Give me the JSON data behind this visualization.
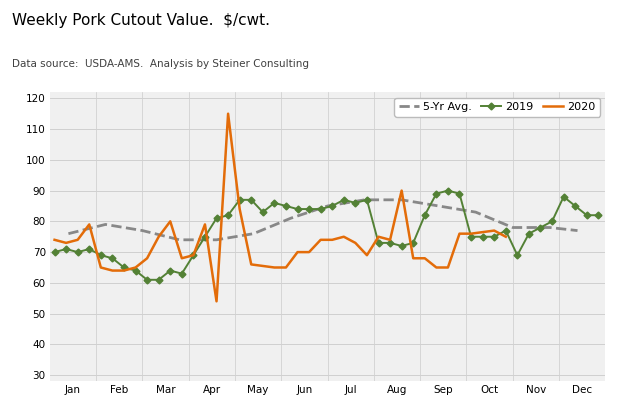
{
  "title": "Weekly Pork Cutout Value.  $/cwt.",
  "subtitle": "Data source:  USDA-AMS.  Analysis by Steiner Consulting",
  "title_fontsize": 11,
  "subtitle_fontsize": 7.5,
  "ylim": [
    28,
    122
  ],
  "yticks": [
    30,
    40,
    50,
    60,
    70,
    80,
    90,
    100,
    110,
    120
  ],
  "months": [
    "Jan",
    "Feb",
    "Mar",
    "Apr",
    "May",
    "Jun",
    "Jul",
    "Aug",
    "Sep",
    "Oct",
    "Nov",
    "Dec"
  ],
  "avg_5yr": {
    "label": "5-Yr Avg.",
    "color": "#888888",
    "linestyle": "--",
    "linewidth": 2.0,
    "x": [
      0.4,
      1.2,
      2.0,
      2.8,
      3.6,
      4.4,
      5.2,
      6.0,
      6.8,
      7.6,
      8.4,
      9.2,
      10.0,
      10.8,
      11.4
    ],
    "y": [
      76,
      79,
      77,
      74,
      74,
      76,
      81,
      85,
      87,
      87,
      85,
      83,
      78,
      78,
      77
    ]
  },
  "y2019": {
    "label": "2019",
    "color": "#538135",
    "linestyle": "-",
    "linewidth": 1.4,
    "marker": "D",
    "markersize": 3.5,
    "x": [
      0.1,
      0.35,
      0.6,
      0.85,
      1.1,
      1.35,
      1.6,
      1.85,
      2.1,
      2.35,
      2.6,
      2.85,
      3.1,
      3.35,
      3.6,
      3.85,
      4.1,
      4.35,
      4.6,
      4.85,
      5.1,
      5.35,
      5.6,
      5.85,
      6.1,
      6.35,
      6.6,
      6.85,
      7.1,
      7.35,
      7.6,
      7.85,
      8.1,
      8.35,
      8.6,
      8.85,
      9.1,
      9.35,
      9.6,
      9.85,
      10.1,
      10.35,
      10.6,
      10.85,
      11.1,
      11.35,
      11.6,
      11.85
    ],
    "y": [
      70,
      71,
      70,
      71,
      69,
      68,
      65,
      64,
      61,
      61,
      64,
      63,
      69,
      75,
      81,
      82,
      87,
      87,
      83,
      86,
      85,
      84,
      84,
      84,
      85,
      87,
      86,
      87,
      73,
      73,
      72,
      73,
      82,
      89,
      90,
      89,
      75,
      75,
      75,
      77,
      69,
      76,
      78,
      80,
      88,
      85,
      82,
      82
    ]
  },
  "y2020": {
    "label": "2020",
    "color": "#E36C09",
    "linestyle": "-",
    "linewidth": 1.8,
    "x": [
      0.1,
      0.35,
      0.6,
      0.85,
      1.1,
      1.35,
      1.6,
      1.85,
      2.1,
      2.35,
      2.6,
      2.85,
      3.1,
      3.35,
      3.6,
      3.85,
      4.1,
      4.35,
      4.85,
      5.1,
      5.35,
      5.6,
      5.85,
      6.1,
      6.35,
      6.6,
      6.85,
      7.1,
      7.35,
      7.6,
      7.85,
      8.1,
      8.35,
      8.6,
      8.85,
      9.1,
      9.6,
      9.85
    ],
    "y": [
      74,
      73,
      74,
      79,
      65,
      64,
      64,
      65,
      68,
      75,
      80,
      68,
      69,
      79,
      54,
      115,
      84,
      66,
      65,
      65,
      70,
      70,
      74,
      74,
      75,
      73,
      69,
      75,
      74,
      90,
      68,
      68,
      65,
      65,
      76,
      76,
      77,
      75
    ]
  },
  "background_color": "#ffffff",
  "grid_color": "#d0d0d0",
  "plot_bg_color": "#f0f0f0"
}
